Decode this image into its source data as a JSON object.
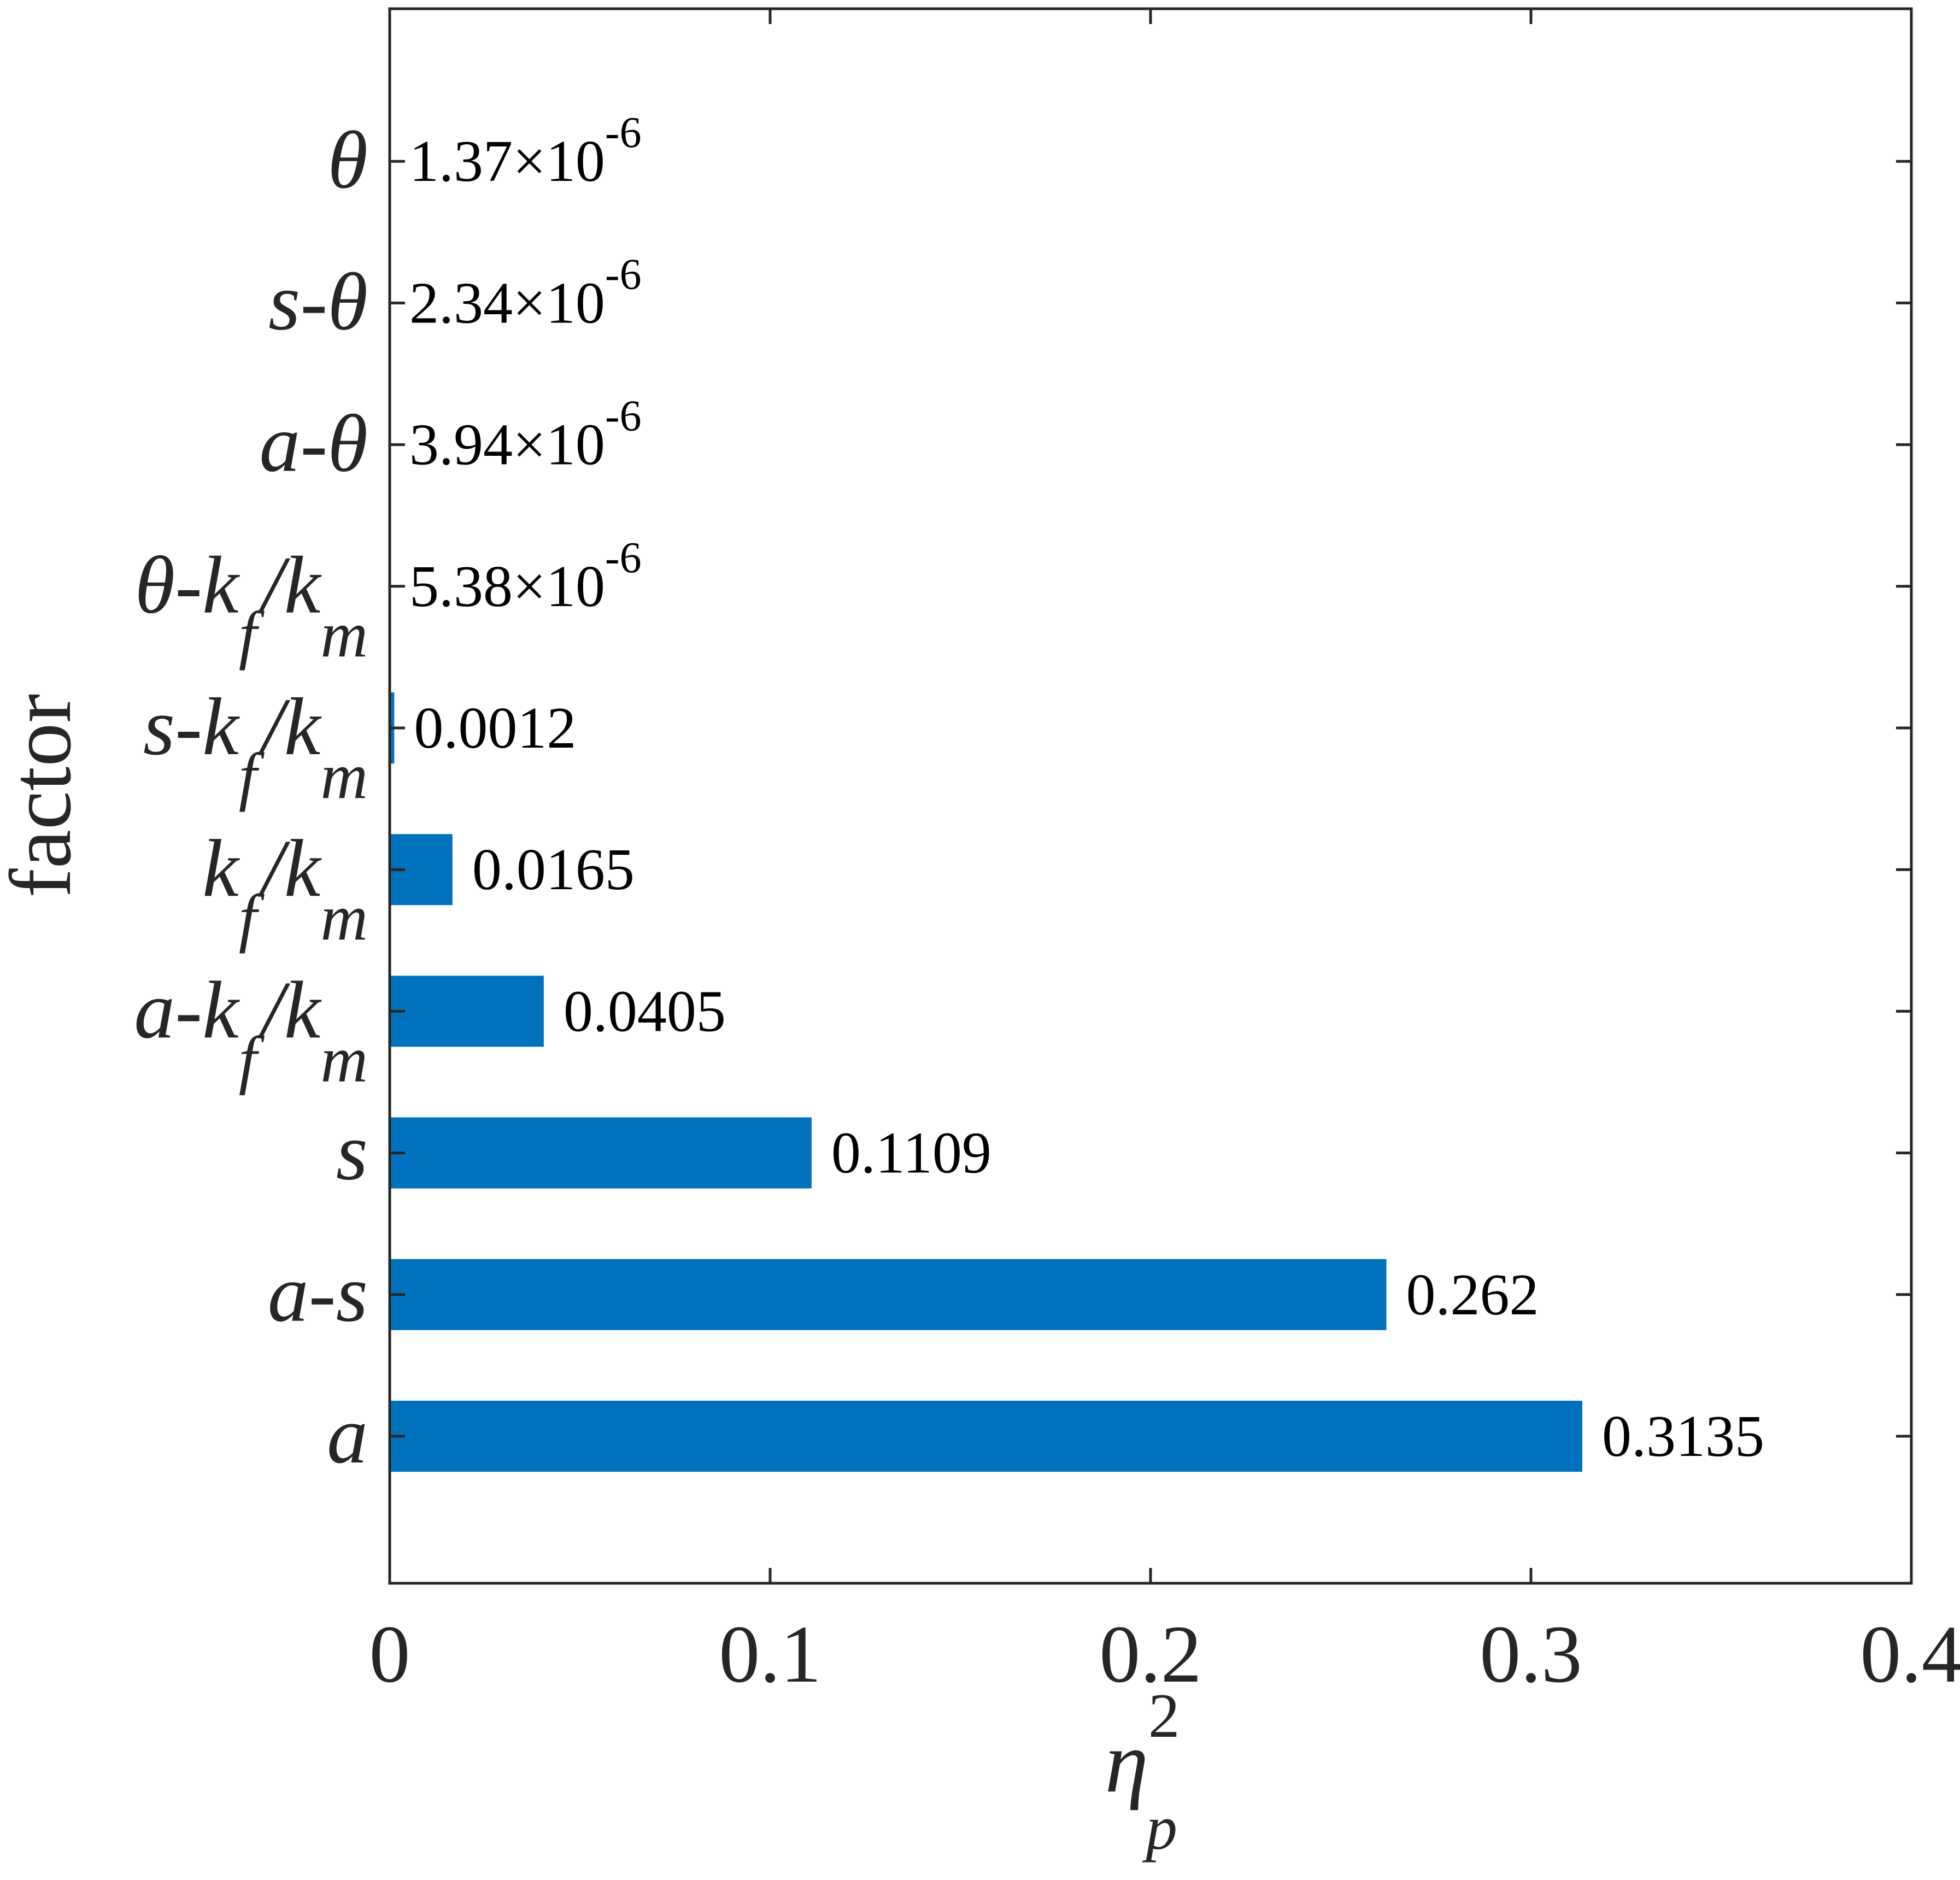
{
  "chart_data": {
    "type": "bar",
    "orientation": "horizontal",
    "bar_color": "#0072BD",
    "categories": [
      {
        "prefix": "",
        "base": "a",
        "sub": "",
        "mid": "",
        "base2": "",
        "sub2": ""
      },
      {
        "prefix": "",
        "base": "a-s",
        "sub": "",
        "mid": "",
        "base2": "",
        "sub2": ""
      },
      {
        "prefix": "",
        "base": "s",
        "sub": "",
        "mid": "",
        "base2": "",
        "sub2": ""
      },
      {
        "prefix": "a-",
        "base": "k",
        "sub": "f",
        "mid": "/",
        "base2": "k",
        "sub2": "m"
      },
      {
        "prefix": "",
        "base": "k",
        "sub": "f",
        "mid": "/",
        "base2": "k",
        "sub2": "m"
      },
      {
        "prefix": "s-",
        "base": "k",
        "sub": "f",
        "mid": "/",
        "base2": "k",
        "sub2": "m"
      },
      {
        "prefix": "θ-",
        "base": "k",
        "sub": "f",
        "mid": "/",
        "base2": "k",
        "sub2": "m"
      },
      {
        "prefix": "",
        "base": "a-θ",
        "sub": "",
        "mid": "",
        "base2": "",
        "sub2": ""
      },
      {
        "prefix": "",
        "base": "s-θ",
        "sub": "",
        "mid": "",
        "base2": "",
        "sub2": ""
      },
      {
        "prefix": "",
        "base": "θ",
        "sub": "",
        "mid": "",
        "base2": "",
        "sub2": ""
      }
    ],
    "values": [
      0.3135,
      0.262,
      0.1109,
      0.0405,
      0.0165,
      0.0012,
      5.38e-06,
      3.94e-06,
      2.34e-06,
      1.37e-06
    ],
    "data_labels": [
      {
        "text": "0.3135",
        "exp": ""
      },
      {
        "text": "0.262",
        "exp": ""
      },
      {
        "text": "0.1109",
        "exp": ""
      },
      {
        "text": "0.0405",
        "exp": ""
      },
      {
        "text": "0.0165",
        "exp": ""
      },
      {
        "text": "0.0012",
        "exp": ""
      },
      {
        "text": "5.38×10",
        "exp": "-6"
      },
      {
        "text": "3.94×10",
        "exp": "-6"
      },
      {
        "text": "2.34×10",
        "exp": "-6"
      },
      {
        "text": "1.37×10",
        "exp": "-6"
      }
    ],
    "xlim": [
      0,
      0.4
    ],
    "xticks": [
      0,
      0.1,
      0.2,
      0.3,
      0.4
    ],
    "xtick_labels": [
      "0",
      "0.1",
      "0.2",
      "0.3",
      "0.4"
    ],
    "xlabel": {
      "base": "η",
      "sup": "2",
      "sub": "p"
    },
    "ylabel": "factor",
    "grid": false,
    "legend": "none",
    "title": ""
  }
}
